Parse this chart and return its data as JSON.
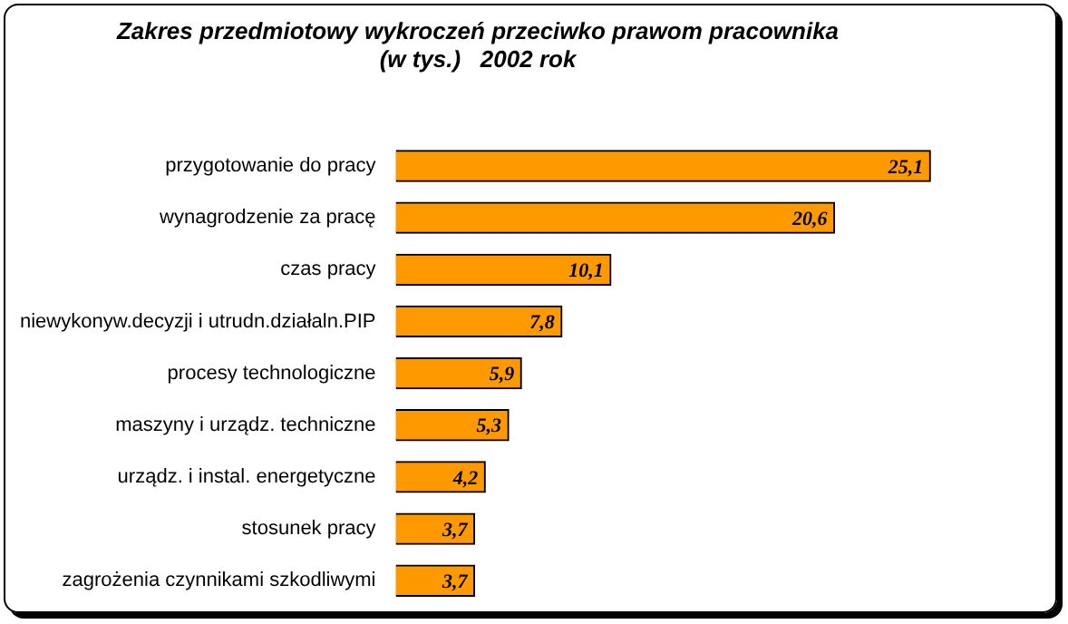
{
  "chart_data": {
    "type": "bar",
    "orientation": "horizontal",
    "title": [
      "Zakres przedmiotowy wykroczeń przeciwko prawom pracownika",
      "(w tys.)   2002 rok"
    ],
    "categories": [
      "przygotowanie do pracy",
      "wynagrodzenie za pracę",
      "czas pracy",
      "niewykonyw.decyzji i utrudn.działaln.PIP",
      "procesy technologiczne",
      "maszyny i urządz. techniczne",
      "urządz. i instal. energetyczne",
      "stosunek pracy",
      "zagrożenia czynnikami szkodliwymi"
    ],
    "values": [
      25.1,
      20.6,
      10.1,
      7.8,
      5.9,
      5.3,
      4.2,
      3.7,
      3.7
    ],
    "value_labels": [
      "25,1",
      "20,6",
      "10,1",
      "7,8",
      "5,9",
      "5,3",
      "4,2",
      "3,7",
      "3,7"
    ],
    "color": "#ff9900",
    "data_labels": true
  }
}
